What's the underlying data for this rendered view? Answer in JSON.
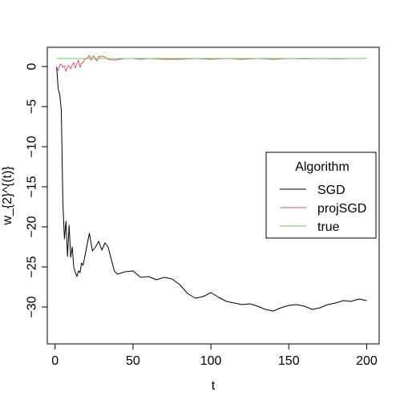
{
  "chart_data": {
    "type": "line",
    "xlabel": "t",
    "ylabel": "w_{2}^{(t)}",
    "xlim": [
      -5,
      208
    ],
    "ylim": [
      -34.6,
      2.4
    ],
    "xticks": [
      0,
      50,
      100,
      150,
      200
    ],
    "yticks": [
      0,
      -5,
      -10,
      -15,
      -20,
      -25,
      -30
    ],
    "legend": {
      "title": "Algorithm",
      "position": "right",
      "entries": [
        "SGD",
        "projSGD",
        "true"
      ]
    },
    "colors": {
      "SGD": "#000000",
      "projSGD": "#DF536B",
      "true": "#61D04F"
    },
    "series": [
      {
        "name": "SGD",
        "color": "#000000",
        "points": [
          [
            1,
            0
          ],
          [
            2,
            -2.8
          ],
          [
            3,
            -3.5
          ],
          [
            4,
            -5.5
          ],
          [
            5,
            -17
          ],
          [
            6,
            -21.5
          ],
          [
            7,
            -19.3
          ],
          [
            8,
            -23.7
          ],
          [
            9,
            -19.8
          ],
          [
            10,
            -23.8
          ],
          [
            11,
            -22.5
          ],
          [
            12,
            -25
          ],
          [
            13,
            -25.7
          ],
          [
            14,
            -26.2
          ],
          [
            15,
            -25.5
          ],
          [
            16,
            -25.7
          ],
          [
            17,
            -24.5
          ],
          [
            18,
            -24.8
          ],
          [
            20,
            -22.8
          ],
          [
            22,
            -20.8
          ],
          [
            24,
            -23
          ],
          [
            26,
            -22.5
          ],
          [
            28,
            -21.8
          ],
          [
            30,
            -22.9
          ],
          [
            32,
            -22
          ],
          [
            34,
            -22.5
          ],
          [
            36,
            -24
          ],
          [
            38,
            -25.5
          ],
          [
            40,
            -25.9
          ],
          [
            45,
            -25.6
          ],
          [
            50,
            -25.5
          ],
          [
            55,
            -26.3
          ],
          [
            60,
            -26.2
          ],
          [
            65,
            -26.6
          ],
          [
            70,
            -26.3
          ],
          [
            75,
            -26.5
          ],
          [
            80,
            -27.2
          ],
          [
            85,
            -28.3
          ],
          [
            90,
            -28.9
          ],
          [
            95,
            -28.7
          ],
          [
            100,
            -28.2
          ],
          [
            105,
            -28.8
          ],
          [
            110,
            -29.3
          ],
          [
            115,
            -29.5
          ],
          [
            120,
            -29.7
          ],
          [
            125,
            -29.6
          ],
          [
            130,
            -29.9
          ],
          [
            135,
            -30.3
          ],
          [
            140,
            -30.5
          ],
          [
            145,
            -30.1
          ],
          [
            150,
            -29.8
          ],
          [
            155,
            -29.7
          ],
          [
            160,
            -29.9
          ],
          [
            165,
            -30.3
          ],
          [
            170,
            -30.1
          ],
          [
            175,
            -29.7
          ],
          [
            180,
            -29.5
          ],
          [
            185,
            -29.2
          ],
          [
            190,
            -29.3
          ],
          [
            195,
            -29
          ],
          [
            200,
            -29.2
          ]
        ]
      },
      {
        "name": "projSGD",
        "color": "#DF536B",
        "points": [
          [
            1,
            0
          ],
          [
            2,
            -0.5
          ],
          [
            3,
            0.2
          ],
          [
            4,
            0.3
          ],
          [
            5,
            -0.1
          ],
          [
            6,
            0.1
          ],
          [
            7,
            -0.6
          ],
          [
            8,
            0
          ],
          [
            9,
            0.1
          ],
          [
            10,
            -0.3
          ],
          [
            11,
            0.2
          ],
          [
            12,
            0.5
          ],
          [
            13,
            -0.2
          ],
          [
            14,
            0.4
          ],
          [
            15,
            0.8
          ],
          [
            16,
            -0.1
          ],
          [
            17,
            0.4
          ],
          [
            18,
            0.5
          ],
          [
            19,
            0.9
          ],
          [
            20,
            1.0
          ],
          [
            21,
            1.1
          ],
          [
            22,
            1.4
          ],
          [
            23,
            0.8
          ],
          [
            24,
            1.2
          ],
          [
            25,
            1.3
          ],
          [
            26,
            0.9
          ],
          [
            27,
            0.7
          ],
          [
            28,
            1.3
          ],
          [
            29,
            1.2
          ],
          [
            30,
            1.3
          ],
          [
            32,
            1.2
          ],
          [
            34,
            0.9
          ],
          [
            38,
            0.8
          ],
          [
            45,
            1.0
          ],
          [
            50,
            1.0
          ],
          [
            55,
            0.9
          ],
          [
            60,
            1.0
          ],
          [
            70,
            0.9
          ],
          [
            80,
            0.9
          ],
          [
            90,
            1.0
          ],
          [
            100,
            0.9
          ],
          [
            110,
            1.0
          ],
          [
            120,
            0.9
          ],
          [
            130,
            1.0
          ],
          [
            140,
            0.9
          ],
          [
            150,
            1.0
          ],
          [
            160,
            0.95
          ],
          [
            170,
            1.0
          ],
          [
            180,
            0.95
          ],
          [
            190,
            1.0
          ],
          [
            200,
            1.0
          ]
        ]
      },
      {
        "name": "true",
        "color": "#61D04F",
        "points": [
          [
            1,
            1
          ],
          [
            200,
            1
          ]
        ]
      }
    ]
  }
}
